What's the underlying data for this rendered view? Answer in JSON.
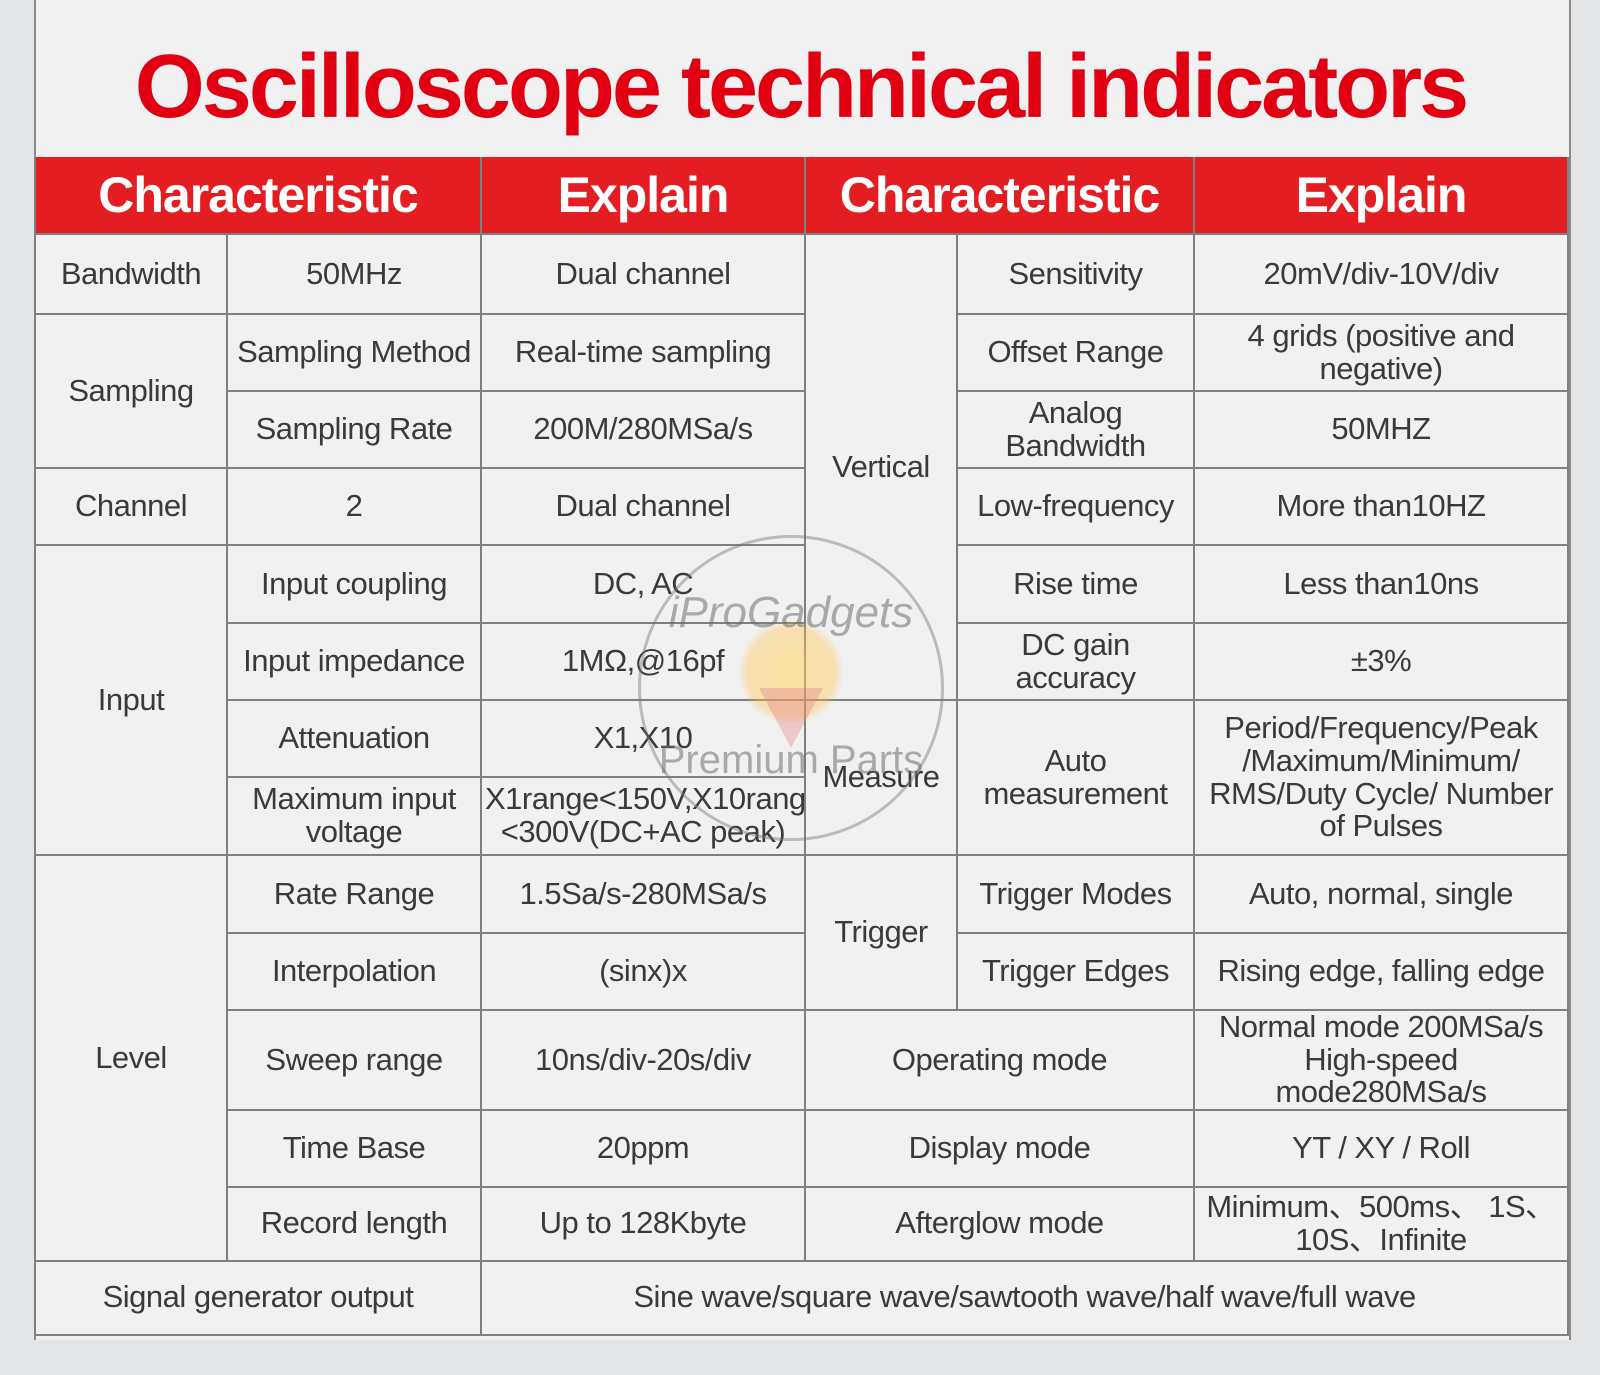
{
  "title": "Oscilloscope technical indicators",
  "header": {
    "characteristic_1": "Characteristic",
    "explain_1": "Explain",
    "characteristic_2": "Characteristic",
    "explain_2": "Explain"
  },
  "rows": {
    "bandwidth": {
      "category": "Bandwidth",
      "value": "50MHz",
      "explain": "Dual channel"
    },
    "sampling": {
      "category": "Sampling",
      "method_label": "Sampling Method",
      "method_value": "Real-time sampling",
      "rate_label": "Sampling Rate",
      "rate_value": "200M/280MSa/s"
    },
    "channel": {
      "category": "Channel",
      "value": "2",
      "explain": "Dual channel"
    },
    "input": {
      "category": "Input",
      "coupling_label": "Input coupling",
      "coupling_value": "DC, AC",
      "impedance_label": "Input impedance",
      "impedance_value": "1MΩ,@16pf",
      "attenuation_label": "Attenuation",
      "attenuation_value": "X1,X10",
      "maxv_label": "Maximum input voltage",
      "maxv_value": "X1range<150V,X10range <300V(DC+AC peak)"
    },
    "level": {
      "category": "Level",
      "rate_label": "Rate Range",
      "rate_value": "1.5Sa/s-280MSa/s",
      "interp_label": "Interpolation",
      "interp_value": "(sinx)x",
      "sweep_label": "Sweep range",
      "sweep_value": "10ns/div-20s/div",
      "timebase_label": "Time Base",
      "timebase_value": "20ppm",
      "record_label": "Record length",
      "record_value": "Up to 128Kbyte"
    },
    "vertical": {
      "category": "Vertical",
      "sensitivity_label": "Sensitivity",
      "sensitivity_value": "20mV/div-10V/div",
      "offset_label": "Offset Range",
      "offset_value": "4 grids (positive and negative)",
      "analog_label": "Analog Bandwidth",
      "analog_value": "50MHZ",
      "lowfreq_label": "Low-frequency",
      "lowfreq_value": "More than10HZ",
      "rise_label": "Rise time",
      "rise_value": "Less than10ns",
      "dcgain_label": "DC gain accuracy",
      "dcgain_value": "±3%"
    },
    "measure": {
      "category": "Measure",
      "auto_label": "Auto measurement",
      "auto_value": "Period/Frequency/Peak /Maximum/Minimum/ RMS/Duty Cycle/ Number of Pulses"
    },
    "trigger": {
      "category": "Trigger",
      "modes_label": "Trigger Modes",
      "modes_value": "Auto, normal, single",
      "edges_label": "Trigger Edges",
      "edges_value": "Rising edge, falling edge"
    },
    "operating": {
      "category": "Operating mode",
      "value": "Normal mode 200MSa/s High-speed mode280MSa/s"
    },
    "display": {
      "category": "Display mode",
      "value": "YT / XY / Roll"
    },
    "afterglow": {
      "category": "Afterglow mode",
      "value": "Minimum、500ms、 1S、10S、Infinite"
    },
    "signal": {
      "category": "Signal generator output",
      "value": "Sine wave/square wave/sawtooth wave/half wave/full wave"
    }
  },
  "watermark": {
    "text_top": "iProGadgets",
    "text_bottom": "Premium Parts"
  },
  "colors": {
    "accent_red": "#e41d22",
    "text_red": "#e00012",
    "body_text": "#3a3a3a"
  }
}
